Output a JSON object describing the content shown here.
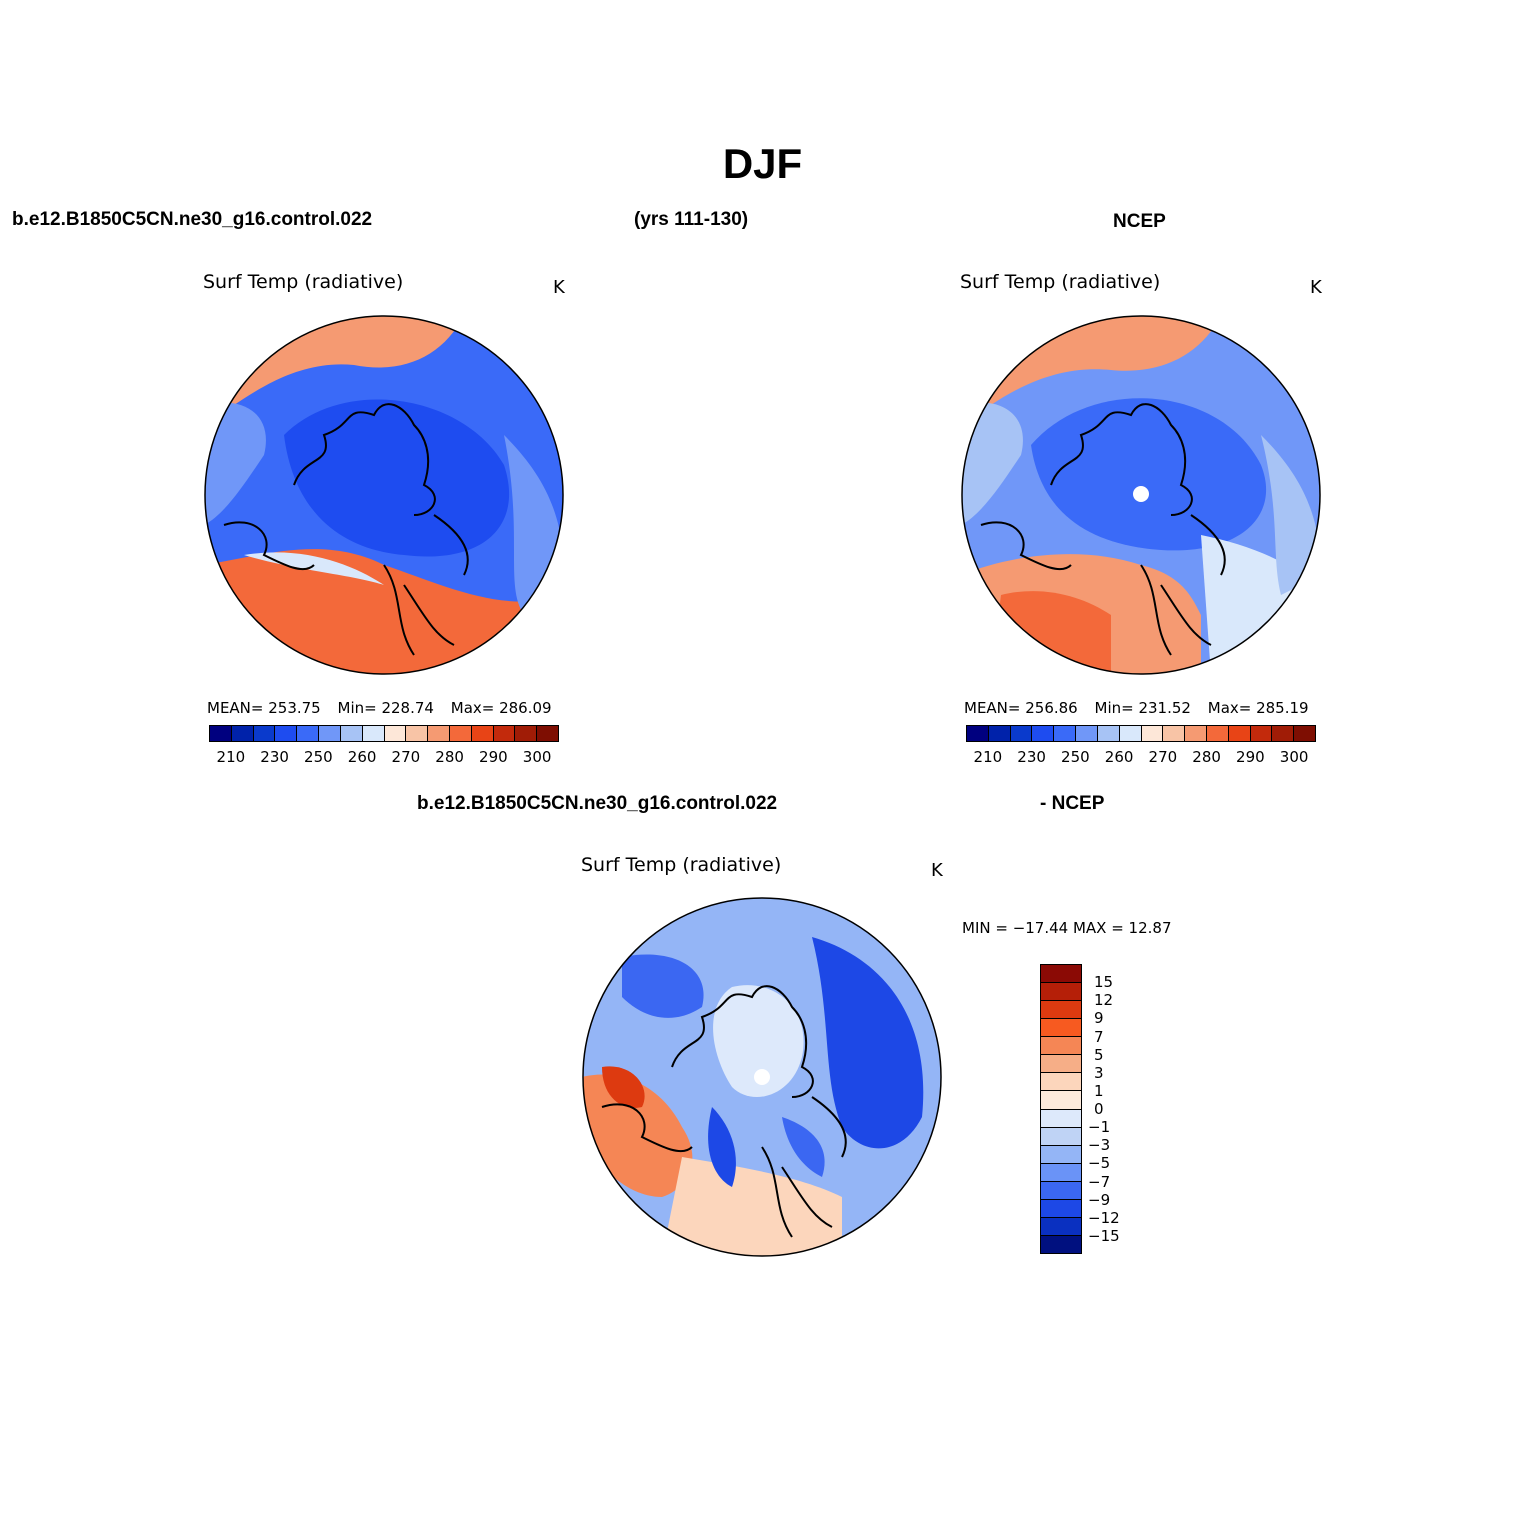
{
  "title": "DJF",
  "header": {
    "case_name": "b.e12.B1850C5CN.ne30_g16.control.022",
    "years": "(yrs 111-130)",
    "obs_name": "NCEP",
    "diff_case": "b.e12.B1850C5CN.ne30_g16.control.022",
    "diff_obs": "- NCEP"
  },
  "panels": {
    "model": {
      "title": "Surf Temp (radiative)",
      "unit": "K",
      "mean": "MEAN= 253.75",
      "min": "Min= 228.74",
      "max": "Max= 286.09"
    },
    "obs": {
      "title": "Surf Temp (radiative)",
      "unit": "K",
      "mean": "MEAN= 256.86",
      "min": "Min= 231.52",
      "max": "Max= 285.19"
    },
    "diff": {
      "title": "Surf Temp (radiative)",
      "unit": "K",
      "minmax": "MIN = −17.44 MAX =   12.87"
    }
  },
  "colorbar_abs": {
    "colors": [
      "#00007f",
      "#0022aa",
      "#0a3acc",
      "#1e4cf0",
      "#3a6af8",
      "#7097f8",
      "#a7c3f5",
      "#d9e8fb",
      "#fde7d8",
      "#f8c4a6",
      "#f59a72",
      "#f3693a",
      "#e84416",
      "#c32a0c",
      "#a01c06",
      "#7e0e02"
    ],
    "labels": [
      "210",
      "230",
      "250",
      "260",
      "270",
      "280",
      "290",
      "300"
    ]
  },
  "colorbar_diff": {
    "colors": [
      "#8b0a05",
      "#b51f08",
      "#dd3a10",
      "#f75a20",
      "#f58655",
      "#f6ae87",
      "#fcd6bc",
      "#fdeadc",
      "#dde9fb",
      "#bfd3f5",
      "#94b5f6",
      "#6a93f7",
      "#3b67f2",
      "#1d48e6",
      "#0a30c0",
      "#00107f"
    ],
    "labels": [
      "15",
      "12",
      "9",
      "7",
      "5",
      "3",
      "1",
      "0",
      "−1",
      "−3",
      "−5",
      "−7",
      "−9",
      "−12",
      "−15"
    ]
  }
}
